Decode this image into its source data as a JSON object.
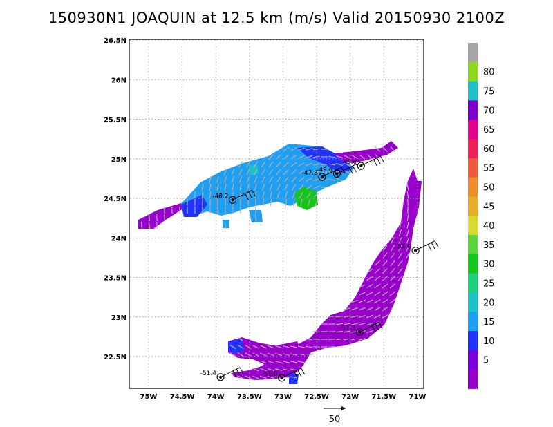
{
  "title": "150930N1 JOAQUIN at 12.5 km (m/s) Valid 20150930 2100Z",
  "lon_labels": [
    "75W",
    "74.5W",
    "74W",
    "73.5W",
    "73W",
    "72.5W",
    "72W",
    "71.5W",
    "71W"
  ],
  "lat_labels": [
    "22.5N",
    "23N",
    "23.5N",
    "24N",
    "24.5N",
    "25N",
    "25.5N",
    "26N",
    "26.5N"
  ],
  "colorbar": {
    "labels": [
      "5",
      "10",
      "15",
      "20",
      "25",
      "30",
      "35",
      "40",
      "45",
      "50",
      "55",
      "60",
      "65",
      "70",
      "75",
      "80"
    ],
    "colors": [
      "#9a00cc",
      "#7a00dd",
      "#2233ff",
      "#1f9ff3",
      "#1bc3c8",
      "#1ecf7a",
      "#13c61a",
      "#5cd43b",
      "#d8db2e",
      "#e8ad27",
      "#ee8b2c",
      "#f05a3a",
      "#ef1f57",
      "#e4008e",
      "#7e00cc",
      "#1ebfc6",
      "#8ed820",
      "#a5a5a5"
    ]
  },
  "stations": [
    {
      "label": "-48.2",
      "lon": -73.75,
      "lat": 24.48
    },
    {
      "label": "-47.8",
      "lon": -72.42,
      "lat": 24.77
    },
    {
      "label": "-49.6",
      "lon": -72.2,
      "lat": 24.81
    },
    {
      "label": "-49.0",
      "lon": -71.84,
      "lat": 24.91
    },
    {
      "label": "-51.0",
      "lon": -71.03,
      "lat": 23.84
    },
    {
      "label": "-51.3",
      "lon": -71.86,
      "lat": 22.81
    },
    {
      "label": "-51.4",
      "lon": -73.93,
      "lat": 22.24
    },
    {
      "label": "-51.0",
      "lon": -73.02,
      "lat": 22.23
    }
  ],
  "scale_vector_label": "50",
  "colors": {
    "grid": "#9a9a9a",
    "vector": "#b0b0b0",
    "outline": "#000000"
  }
}
